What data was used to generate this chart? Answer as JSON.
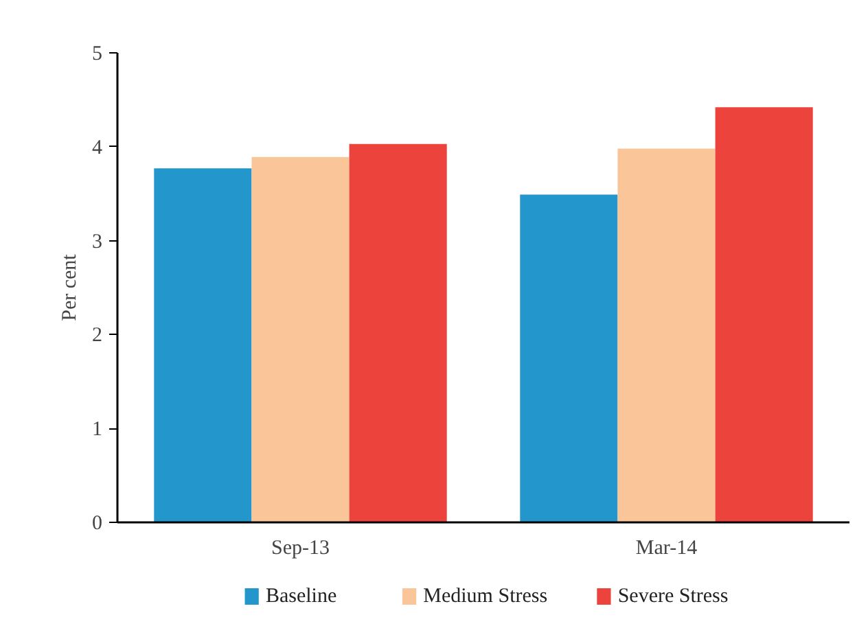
{
  "chart_data": {
    "type": "bar",
    "ylabel": "Per cent",
    "categories": [
      "Sep-13",
      "Mar-14"
    ],
    "series": [
      {
        "name": "Baseline",
        "color": "#2396cc",
        "values": [
          3.77,
          3.49
        ]
      },
      {
        "name": "Medium Stress",
        "color": "#fbc59a",
        "values": [
          3.89,
          3.98
        ]
      },
      {
        "name": "Severe Stress",
        "color": "#ec433d",
        "values": [
          4.03,
          4.42
        ]
      }
    ],
    "ylim": [
      0,
      5
    ],
    "yticks": [
      0,
      1,
      2,
      3,
      4,
      5
    ],
    "grid": false,
    "legend": "bottom"
  }
}
